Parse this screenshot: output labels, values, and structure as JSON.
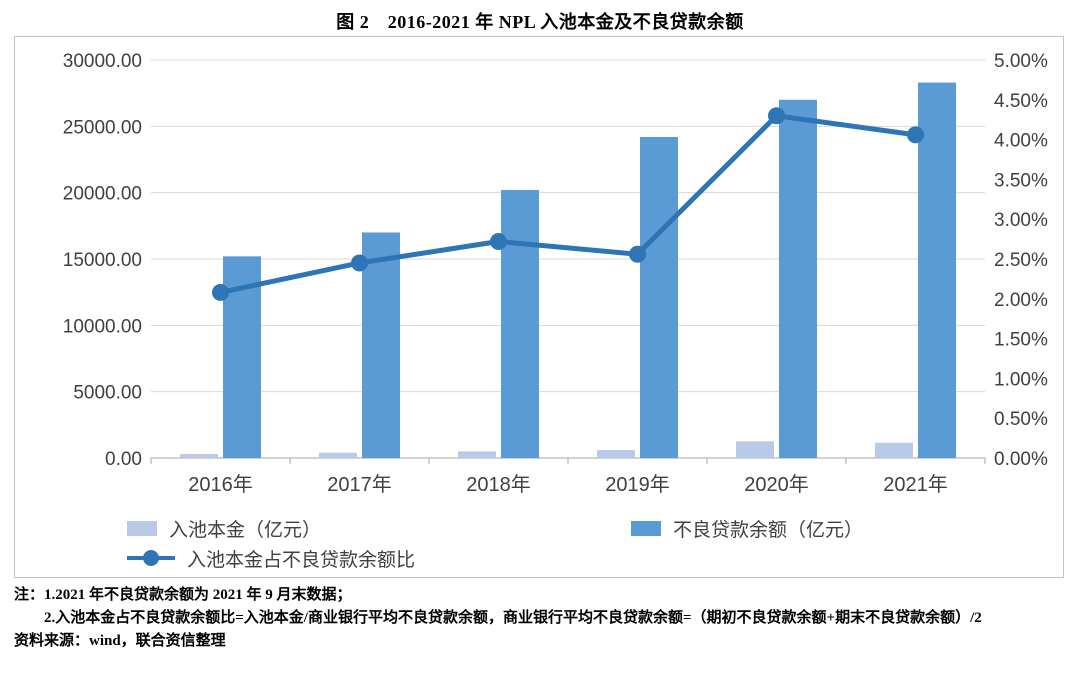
{
  "title": "图 2　2016-2021 年 NPL 入池本金及不良贷款余额",
  "chart_data": {
    "type": "bar",
    "subtype": "combo-bar-line",
    "categories": [
      "2016年",
      "2017年",
      "2018年",
      "2019年",
      "2020年",
      "2021年"
    ],
    "bar_series": [
      {
        "name": "入池本金（亿元）",
        "color": "#b9c9e8",
        "axis": "left",
        "values": [
          300,
          400,
          500,
          600,
          1250,
          1150
        ]
      },
      {
        "name": "不良贷款余额（亿元）",
        "color": "#5b9bd5",
        "axis": "left",
        "values": [
          15200,
          17000,
          20200,
          24200,
          27000,
          28300
        ]
      }
    ],
    "line_series": {
      "name": "入池本金占不良贷款余额比",
      "color": "#2e75b6",
      "axis": "right",
      "values": [
        2.08,
        2.45,
        2.72,
        2.56,
        4.3,
        4.06
      ]
    },
    "left_axis": {
      "min": 0,
      "max": 30000,
      "step": 5000,
      "format": "0.00"
    },
    "right_axis": {
      "min": 0,
      "max": 5,
      "step": 0.5,
      "format": "0.00%"
    },
    "grid": true,
    "legend_position": "bottom",
    "gridline_color": "#d9d9d9",
    "axis_line_color": "#a6a6a6",
    "tick_label_color": "#404040"
  },
  "notes": {
    "label": "注：",
    "items": [
      "1.2021 年不良贷款余额为 2021 年 9 月末数据；",
      "2.入池本金占不良贷款余额比=入池本金/商业银行平均不良贷款余额，商业银行平均不良贷款余额=（期初不良贷款余额+期末不良贷款余额）/2"
    ],
    "source": "资料来源：wind，联合资信整理"
  }
}
